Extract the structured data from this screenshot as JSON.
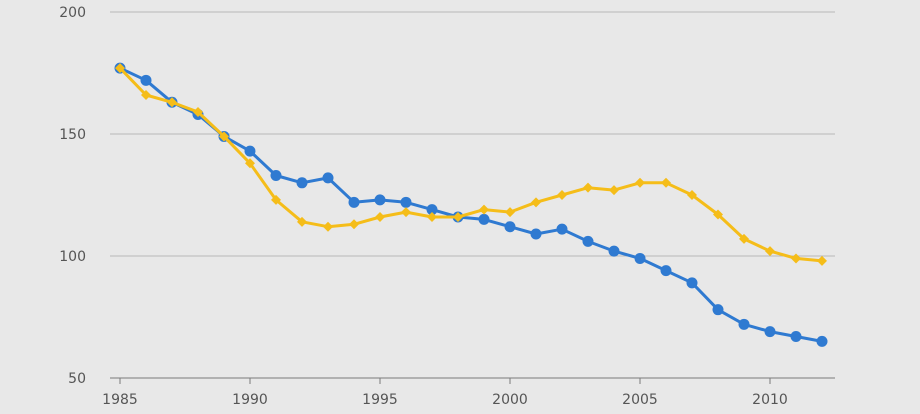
{
  "chart_data": {
    "type": "line",
    "title": "",
    "xlabel": "",
    "ylabel": "",
    "x": [
      1985,
      1986,
      1987,
      1988,
      1989,
      1990,
      1991,
      1992,
      1993,
      1994,
      1995,
      1996,
      1997,
      1998,
      1999,
      2000,
      2001,
      2002,
      2003,
      2004,
      2005,
      2006,
      2007,
      2008,
      2009,
      2010,
      2011,
      2012
    ],
    "xlim": [
      1985,
      2012
    ],
    "ylim": [
      50,
      200
    ],
    "xticks": [
      "1985",
      "1990",
      "1995",
      "2000",
      "2005",
      "2010"
    ],
    "yticks": [
      "200",
      "150",
      "100",
      "50"
    ],
    "grid": "horizontal",
    "legend": "none",
    "series": [
      {
        "color": "#2f7ad1",
        "marker": "circle",
        "values": [
          177,
          172,
          163,
          158,
          149,
          143,
          133,
          130,
          132,
          122,
          123,
          122,
          119,
          116,
          115,
          112,
          109,
          111,
          106,
          102,
          99,
          94,
          89,
          78,
          72,
          69,
          67,
          65
        ]
      },
      {
        "color": "#f5bd19",
        "marker": "diamond",
        "values": [
          177,
          166,
          163,
          159,
          149,
          138,
          123,
          114,
          112,
          113,
          116,
          118,
          116,
          116,
          119,
          118,
          122,
          125,
          128,
          127,
          130,
          130,
          125,
          117,
          107,
          102,
          99,
          98
        ]
      }
    ]
  }
}
